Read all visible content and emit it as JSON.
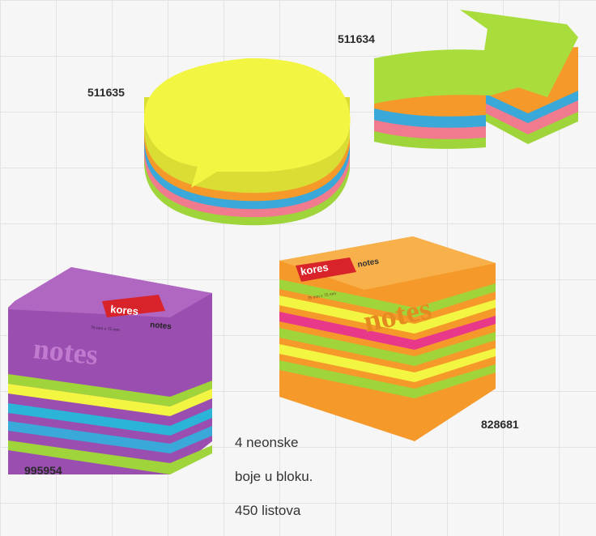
{
  "products": [
    {
      "code": "511635",
      "shape": "speech-bubble"
    },
    {
      "code": "511634",
      "shape": "arrow"
    },
    {
      "code": "828681",
      "shape": "cube-orange",
      "brand": "kores",
      "label": "notes",
      "size_text": "75 mm x 75 mm",
      "watermark": "notes"
    },
    {
      "code": "995954",
      "shape": "cube-purple",
      "brand": "kores",
      "label": "notes",
      "size_text": "75 mm x 75 mm",
      "watermark": "notes"
    }
  ],
  "caption": {
    "line1": "4 neonske",
    "line2": "boje u bloku.",
    "line3": "450 listova"
  },
  "colors": {
    "neon_yellow": "#f2f542",
    "neon_green": "#9fd43a",
    "neon_orange": "#f59a2a",
    "neon_pink": "#f07a8e",
    "neon_blue": "#3aa8d8",
    "magenta": "#e8388a",
    "purple": "#9a4fb0",
    "kores_red": "#d8232a"
  }
}
